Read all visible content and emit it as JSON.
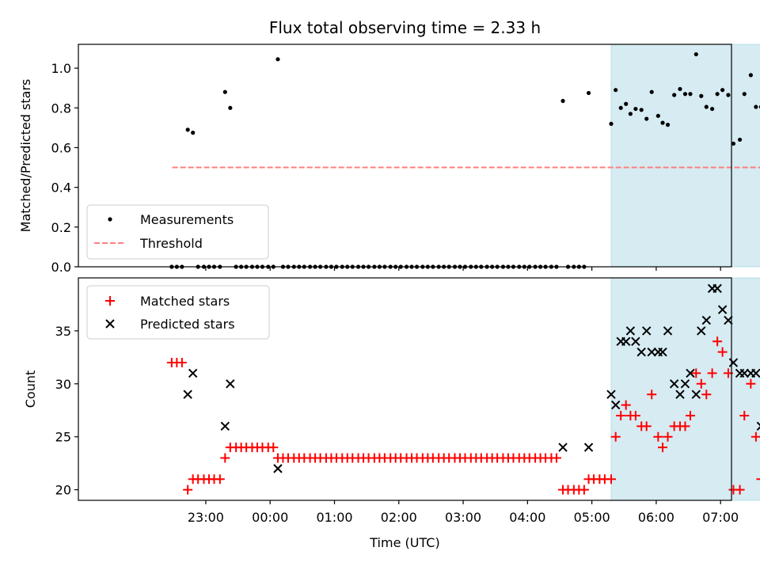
{
  "title": "Flux total observing time = 2.33 h",
  "colors": {
    "measurement": "#000000",
    "threshold": "#ff7f7f",
    "matched": "#ff0000",
    "predicted": "#000000",
    "highlight": "#add8e6"
  },
  "chart_data": [
    {
      "type": "scatter",
      "title": "Flux total observing time = 2.33 h",
      "xlabel": "",
      "ylabel": "Matched/Predicted stars",
      "x_unit": "hours since 22:00 UTC (day 1)",
      "xlim": [
        -0.98,
        9.17
      ],
      "ylim": [
        0.0,
        1.12
      ],
      "yticks": [
        0.0,
        0.2,
        0.4,
        0.6,
        0.8,
        1.0
      ],
      "ytick_labels": [
        "0.0",
        "0.2",
        "0.4",
        "0.6",
        "0.8",
        "1.0"
      ],
      "legend": {
        "position": "lower left",
        "entries": [
          "Measurements",
          "Threshold"
        ]
      },
      "highlight_span": [
        7.3,
        9.63
      ],
      "threshold": {
        "name": "Threshold",
        "value": 0.5,
        "x_range": [
          22.48,
          31.83
        ]
      },
      "series": [
        {
          "name": "Measurements",
          "points": [
            [
              22.47,
              0.0
            ],
            [
              22.55,
              0.0
            ],
            [
              22.63,
              0.0
            ],
            [
              22.72,
              0.69
            ],
            [
              22.8,
              0.675
            ],
            [
              22.88,
              0.0
            ],
            [
              22.97,
              0.0
            ],
            [
              23.05,
              0.0
            ],
            [
              23.13,
              0.0
            ],
            [
              23.22,
              0.0
            ],
            [
              23.3,
              0.88
            ],
            [
              23.38,
              0.8
            ],
            [
              23.47,
              0.0
            ],
            [
              23.55,
              0.0
            ],
            [
              23.63,
              0.0
            ],
            [
              23.72,
              0.0
            ],
            [
              23.8,
              0.0
            ],
            [
              23.88,
              0.0
            ],
            [
              23.97,
              0.0
            ],
            [
              24.05,
              0.0
            ],
            [
              24.12,
              1.045
            ],
            [
              24.2,
              0.0
            ],
            [
              24.28,
              0.0
            ],
            [
              24.37,
              0.0
            ],
            [
              24.45,
              0.0
            ],
            [
              24.53,
              0.0
            ],
            [
              24.62,
              0.0
            ],
            [
              24.7,
              0.0
            ],
            [
              24.78,
              0.0
            ],
            [
              24.87,
              0.0
            ],
            [
              24.95,
              0.0
            ],
            [
              25.03,
              0.0
            ],
            [
              25.12,
              0.0
            ],
            [
              25.2,
              0.0
            ],
            [
              25.28,
              0.0
            ],
            [
              25.37,
              0.0
            ],
            [
              25.45,
              0.0
            ],
            [
              25.53,
              0.0
            ],
            [
              25.62,
              0.0
            ],
            [
              25.7,
              0.0
            ],
            [
              25.78,
              0.0
            ],
            [
              25.87,
              0.0
            ],
            [
              25.95,
              0.0
            ],
            [
              26.03,
              0.0
            ],
            [
              26.12,
              0.0
            ],
            [
              26.2,
              0.0
            ],
            [
              26.28,
              0.0
            ],
            [
              26.37,
              0.0
            ],
            [
              26.45,
              0.0
            ],
            [
              26.53,
              0.0
            ],
            [
              26.62,
              0.0
            ],
            [
              26.7,
              0.0
            ],
            [
              26.78,
              0.0
            ],
            [
              26.87,
              0.0
            ],
            [
              26.95,
              0.0
            ],
            [
              27.03,
              0.0
            ],
            [
              27.12,
              0.0
            ],
            [
              27.2,
              0.0
            ],
            [
              27.28,
              0.0
            ],
            [
              27.37,
              0.0
            ],
            [
              27.45,
              0.0
            ],
            [
              27.53,
              0.0
            ],
            [
              27.62,
              0.0
            ],
            [
              27.7,
              0.0
            ],
            [
              27.78,
              0.0
            ],
            [
              27.87,
              0.0
            ],
            [
              27.95,
              0.0
            ],
            [
              28.03,
              0.0
            ],
            [
              28.12,
              0.0
            ],
            [
              28.2,
              0.0
            ],
            [
              28.28,
              0.0
            ],
            [
              28.37,
              0.0
            ],
            [
              28.45,
              0.0
            ],
            [
              28.55,
              0.835
            ],
            [
              28.63,
              0.0
            ],
            [
              28.72,
              0.0
            ],
            [
              28.8,
              0.0
            ],
            [
              28.88,
              0.0
            ],
            [
              28.95,
              0.875
            ],
            [
              29.3,
              0.72
            ],
            [
              29.37,
              0.89
            ],
            [
              29.45,
              0.8
            ],
            [
              29.53,
              0.82
            ],
            [
              29.6,
              0.77
            ],
            [
              29.68,
              0.795
            ],
            [
              29.77,
              0.79
            ],
            [
              29.85,
              0.745
            ],
            [
              29.93,
              0.88
            ],
            [
              30.03,
              0.76
            ],
            [
              30.1,
              0.725
            ],
            [
              30.18,
              0.715
            ],
            [
              30.28,
              0.865
            ],
            [
              30.37,
              0.895
            ],
            [
              30.45,
              0.87
            ],
            [
              30.53,
              0.87
            ],
            [
              30.62,
              1.07
            ],
            [
              30.7,
              0.86
            ],
            [
              30.78,
              0.805
            ],
            [
              30.87,
              0.795
            ],
            [
              30.95,
              0.87
            ],
            [
              31.03,
              0.89
            ],
            [
              31.12,
              0.865
            ],
            [
              31.2,
              0.62
            ],
            [
              31.3,
              0.64
            ],
            [
              31.37,
              0.87
            ],
            [
              31.47,
              0.965
            ],
            [
              31.55,
              0.805
            ],
            [
              31.63,
              0.805
            ],
            [
              31.72,
              0.0
            ],
            [
              31.8,
              0.0
            ]
          ]
        }
      ]
    },
    {
      "type": "scatter",
      "xlabel": "Time (UTC)",
      "ylabel": "Count",
      "xlim": [
        -0.98,
        9.17
      ],
      "ylim": [
        19.0,
        40.0
      ],
      "yticks": [
        20,
        25,
        30,
        35
      ],
      "ytick_labels": [
        "20",
        "25",
        "30",
        "35"
      ],
      "xticks": [
        23,
        24,
        25,
        26,
        27,
        28,
        29,
        30,
        31,
        32
      ],
      "xtick_labels": [
        "23:00",
        "00:00",
        "01:00",
        "02:00",
        "03:00",
        "04:00",
        "05:00",
        "06:00",
        "07:00",
        "08:00"
      ],
      "legend": {
        "position": "upper left",
        "entries": [
          "Matched stars",
          "Predicted stars"
        ]
      },
      "highlight_span": [
        7.3,
        9.63
      ],
      "series": [
        {
          "name": "Matched stars",
          "marker": "+",
          "points": [
            [
              22.47,
              32
            ],
            [
              22.55,
              32
            ],
            [
              22.63,
              32
            ],
            [
              22.72,
              20
            ],
            [
              22.8,
              21
            ],
            [
              22.88,
              21
            ],
            [
              22.97,
              21
            ],
            [
              23.05,
              21
            ],
            [
              23.13,
              21
            ],
            [
              23.22,
              21
            ],
            [
              23.3,
              23
            ],
            [
              23.38,
              24
            ],
            [
              23.47,
              24
            ],
            [
              23.55,
              24
            ],
            [
              23.63,
              24
            ],
            [
              23.72,
              24
            ],
            [
              23.8,
              24
            ],
            [
              23.88,
              24
            ],
            [
              23.97,
              24
            ],
            [
              24.05,
              24
            ],
            [
              24.12,
              23
            ],
            [
              24.2,
              23
            ],
            [
              24.28,
              23
            ],
            [
              24.37,
              23
            ],
            [
              24.45,
              23
            ],
            [
              24.53,
              23
            ],
            [
              24.62,
              23
            ],
            [
              24.7,
              23
            ],
            [
              24.78,
              23
            ],
            [
              24.87,
              23
            ],
            [
              24.95,
              23
            ],
            [
              25.03,
              23
            ],
            [
              25.12,
              23
            ],
            [
              25.2,
              23
            ],
            [
              25.28,
              23
            ],
            [
              25.37,
              23
            ],
            [
              25.45,
              23
            ],
            [
              25.53,
              23
            ],
            [
              25.62,
              23
            ],
            [
              25.7,
              23
            ],
            [
              25.78,
              23
            ],
            [
              25.87,
              23
            ],
            [
              25.95,
              23
            ],
            [
              26.03,
              23
            ],
            [
              26.12,
              23
            ],
            [
              26.2,
              23
            ],
            [
              26.28,
              23
            ],
            [
              26.37,
              23
            ],
            [
              26.45,
              23
            ],
            [
              26.53,
              23
            ],
            [
              26.62,
              23
            ],
            [
              26.7,
              23
            ],
            [
              26.78,
              23
            ],
            [
              26.87,
              23
            ],
            [
              26.95,
              23
            ],
            [
              27.03,
              23
            ],
            [
              27.12,
              23
            ],
            [
              27.2,
              23
            ],
            [
              27.28,
              23
            ],
            [
              27.37,
              23
            ],
            [
              27.45,
              23
            ],
            [
              27.53,
              23
            ],
            [
              27.62,
              23
            ],
            [
              27.7,
              23
            ],
            [
              27.78,
              23
            ],
            [
              27.87,
              23
            ],
            [
              27.95,
              23
            ],
            [
              28.03,
              23
            ],
            [
              28.12,
              23
            ],
            [
              28.2,
              23
            ],
            [
              28.28,
              23
            ],
            [
              28.37,
              23
            ],
            [
              28.45,
              23
            ],
            [
              28.55,
              20
            ],
            [
              28.63,
              20
            ],
            [
              28.72,
              20
            ],
            [
              28.8,
              20
            ],
            [
              28.88,
              20
            ],
            [
              28.95,
              21
            ],
            [
              29.03,
              21
            ],
            [
              29.12,
              21
            ],
            [
              29.2,
              21
            ],
            [
              29.3,
              21
            ],
            [
              29.37,
              25
            ],
            [
              29.45,
              27
            ],
            [
              29.53,
              28
            ],
            [
              29.6,
              27
            ],
            [
              29.68,
              27
            ],
            [
              29.77,
              26
            ],
            [
              29.85,
              26
            ],
            [
              29.93,
              29
            ],
            [
              30.03,
              25
            ],
            [
              30.1,
              24
            ],
            [
              30.18,
              25
            ],
            [
              30.28,
              26
            ],
            [
              30.37,
              26
            ],
            [
              30.45,
              26
            ],
            [
              30.53,
              27
            ],
            [
              30.62,
              31
            ],
            [
              30.7,
              30
            ],
            [
              30.78,
              29
            ],
            [
              30.87,
              31
            ],
            [
              30.95,
              34
            ],
            [
              31.03,
              33
            ],
            [
              31.12,
              31
            ],
            [
              31.2,
              20
            ],
            [
              31.3,
              20
            ],
            [
              31.37,
              27
            ],
            [
              31.47,
              30
            ],
            [
              31.55,
              25
            ],
            [
              31.63,
              21
            ],
            [
              31.72,
              21
            ],
            [
              31.8,
              21
            ]
          ]
        },
        {
          "name": "Predicted stars",
          "marker": "x",
          "points": [
            [
              22.72,
              29
            ],
            [
              22.8,
              31
            ],
            [
              23.3,
              26
            ],
            [
              23.38,
              30
            ],
            [
              24.12,
              22
            ],
            [
              28.55,
              24
            ],
            [
              28.95,
              24
            ],
            [
              29.3,
              29
            ],
            [
              29.37,
              28
            ],
            [
              29.45,
              34
            ],
            [
              29.53,
              34
            ],
            [
              29.6,
              35
            ],
            [
              29.68,
              34
            ],
            [
              29.77,
              33
            ],
            [
              29.85,
              35
            ],
            [
              29.93,
              33
            ],
            [
              30.03,
              33
            ],
            [
              30.1,
              33
            ],
            [
              30.18,
              35
            ],
            [
              30.28,
              30
            ],
            [
              30.37,
              29
            ],
            [
              30.45,
              30
            ],
            [
              30.53,
              31
            ],
            [
              30.62,
              29
            ],
            [
              30.7,
              35
            ],
            [
              30.78,
              36
            ],
            [
              30.87,
              39
            ],
            [
              30.95,
              39
            ],
            [
              31.03,
              37
            ],
            [
              31.12,
              36
            ],
            [
              31.2,
              32
            ],
            [
              31.3,
              31
            ],
            [
              31.37,
              31
            ],
            [
              31.47,
              31
            ],
            [
              31.55,
              31
            ],
            [
              31.63,
              26
            ]
          ]
        }
      ]
    }
  ]
}
